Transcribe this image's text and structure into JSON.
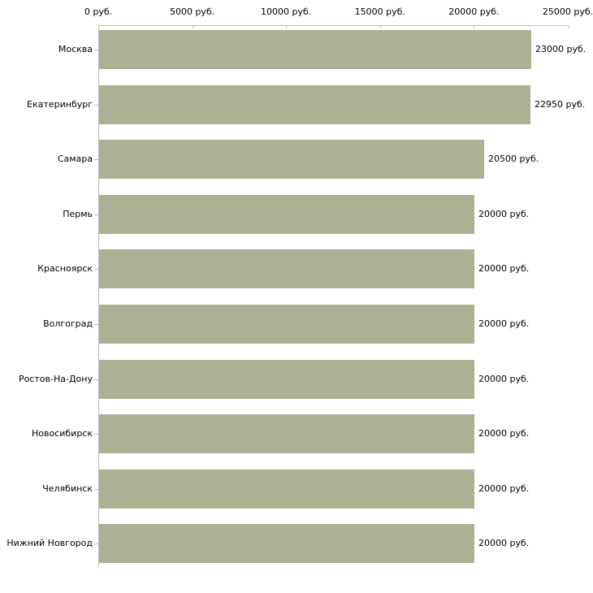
{
  "chart_data": {
    "type": "bar",
    "orientation": "horizontal",
    "title": "",
    "categories": [
      "Москва",
      "Екатеринбург",
      "Самара",
      "Пермь",
      "Красноярск",
      "Волгоград",
      "Ростов-На-Дону",
      "Новосибирск",
      "Челябинск",
      "Нижний Новгород"
    ],
    "values": [
      23000,
      22950,
      20500,
      20000,
      20000,
      20000,
      20000,
      20000,
      20000,
      20000
    ],
    "value_labels": [
      "23000 руб.",
      "22950 руб.",
      "20500 руб.",
      "20000 руб.",
      "20000 руб.",
      "20000 руб.",
      "20000 руб.",
      "20000 руб.",
      "20000 руб.",
      "20000 руб."
    ],
    "unit": "руб.",
    "x_axis": {
      "position": "top",
      "min": 0,
      "max": 25000,
      "tick_values": [
        0,
        5000,
        10000,
        15000,
        20000,
        25000
      ],
      "tick_labels": [
        "0 руб.",
        "5000 руб.",
        "10000 руб.",
        "15000 руб.",
        "20000 руб.",
        "25000 руб."
      ]
    },
    "legend": false,
    "grid": false,
    "colors": {
      "bar": "#acb194",
      "x_axis_line": "#c6c6a4",
      "y_axis_line": "#bdbdbd",
      "category_tick": "#c2c2ad",
      "text": "#000000",
      "background": "#ffffff"
    }
  }
}
